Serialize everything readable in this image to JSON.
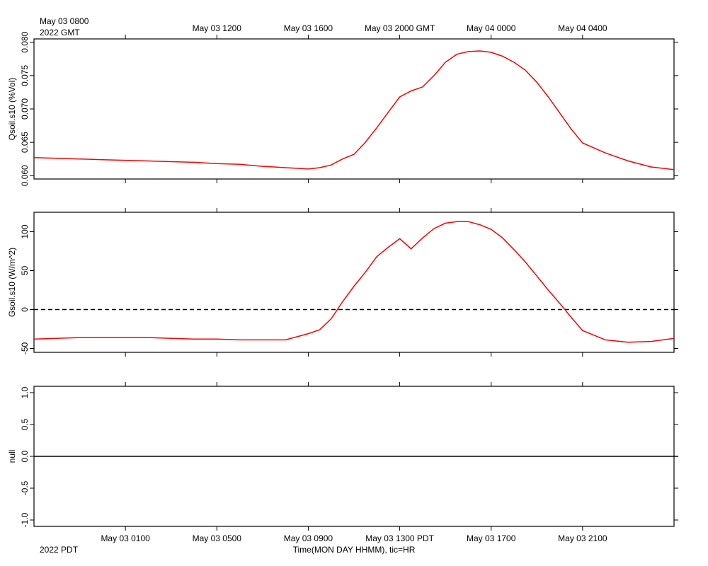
{
  "top_axis": {
    "ticks": [
      {
        "h": 4,
        "label": ""
      },
      {
        "h": 8,
        "label": "May 03 1200"
      },
      {
        "h": 12,
        "label": "May 03 1600"
      },
      {
        "h": 16,
        "label": "May 03 2000 GMT"
      },
      {
        "h": 20,
        "label": "May 04 0000"
      },
      {
        "h": 24,
        "label": "May 04 0400"
      }
    ],
    "start_line1": "May 03 0800",
    "start_line2": "2022 GMT"
  },
  "bottom_axis": {
    "ticks": [
      {
        "h": 4,
        "label": "May 03 0100"
      },
      {
        "h": 8,
        "label": "May 03 0500"
      },
      {
        "h": 12,
        "label": "May 03 0900"
      },
      {
        "h": 16,
        "label": "May 03 1300 PDT"
      },
      {
        "h": 20,
        "label": "May 03 1700"
      },
      {
        "h": 24,
        "label": "May 03 2100"
      }
    ],
    "start_line2": "2022 PDT",
    "title": "Time(MON DAY HHMM), tic=HR"
  },
  "chart_data": [
    {
      "type": "line",
      "ylabel": "Qsoil.s10 (%Vol)",
      "ylim": [
        0.0595,
        0.0805
      ],
      "yticks": [
        0.06,
        0.065,
        0.07,
        0.075,
        0.08
      ],
      "ytick_labels": [
        "0.060",
        "0.065",
        "0.070",
        "0.075",
        "0.080"
      ],
      "zero_line": null,
      "series_color": "#ff0000",
      "series": [
        {
          "x": [
            0,
            1,
            2,
            3,
            4,
            5,
            6,
            7,
            8,
            9,
            10,
            10.5,
            11,
            11.5,
            12,
            12.5,
            13,
            13.5,
            14,
            14.5,
            15,
            15.5,
            16,
            16.5,
            17,
            17.5,
            18,
            18.5,
            19,
            19.5,
            20,
            20.5,
            21,
            21.5,
            22,
            22.5,
            23,
            23.5,
            24,
            25,
            26,
            27,
            28
          ],
          "values": [
            0.0627,
            0.0626,
            0.0625,
            0.0624,
            0.0623,
            0.0622,
            0.0621,
            0.062,
            0.0618,
            0.0617,
            0.0614,
            0.0613,
            0.0612,
            0.0611,
            0.061,
            0.0612,
            0.0616,
            0.0625,
            0.0632,
            0.065,
            0.0672,
            0.0695,
            0.0718,
            0.0727,
            0.0733,
            0.075,
            0.077,
            0.0782,
            0.0786,
            0.0787,
            0.0785,
            0.0779,
            0.077,
            0.0758,
            0.074,
            0.0718,
            0.0694,
            0.067,
            0.0649,
            0.0634,
            0.0622,
            0.0613,
            0.0609
          ]
        }
      ]
    },
    {
      "type": "line",
      "ylabel": "Gsoil.s10 (W/m^2)",
      "ylim": [
        -55,
        125
      ],
      "yticks": [
        -50,
        0,
        50,
        100
      ],
      "ytick_labels": [
        "-50",
        "0",
        "50",
        "100"
      ],
      "zero_line": 0,
      "series_color": "#ff0000",
      "series": [
        {
          "x": [
            0,
            1,
            2,
            3,
            4,
            5,
            6,
            7,
            8,
            9,
            10,
            11,
            11.5,
            12,
            12.5,
            13,
            13.5,
            14,
            14.5,
            15,
            15.5,
            16,
            16.5,
            17,
            17.5,
            18,
            18.5,
            19,
            19.5,
            20,
            20.5,
            21,
            21.5,
            22,
            22.5,
            23,
            23.5,
            24,
            25,
            26,
            27,
            28
          ],
          "values": [
            -38,
            -37,
            -36,
            -36,
            -36,
            -36,
            -37,
            -38,
            -38,
            -39,
            -39,
            -39,
            -35,
            -31,
            -26,
            -12,
            10,
            30,
            48,
            68,
            80,
            91,
            78,
            92,
            104,
            111,
            113,
            113,
            109,
            103,
            92,
            77,
            61,
            43,
            25,
            8,
            -10,
            -27,
            -39,
            -42,
            -41,
            -37
          ]
        }
      ]
    },
    {
      "type": "line",
      "ylabel": "null",
      "ylim": [
        -1.1,
        1.1
      ],
      "yticks": [
        -1.0,
        -0.5,
        0.0,
        0.5,
        1.0
      ],
      "ytick_labels": [
        "-1.0",
        "-0.5",
        "0.0",
        "0.5",
        "1.0"
      ],
      "zero_line": 0,
      "series": []
    }
  ]
}
